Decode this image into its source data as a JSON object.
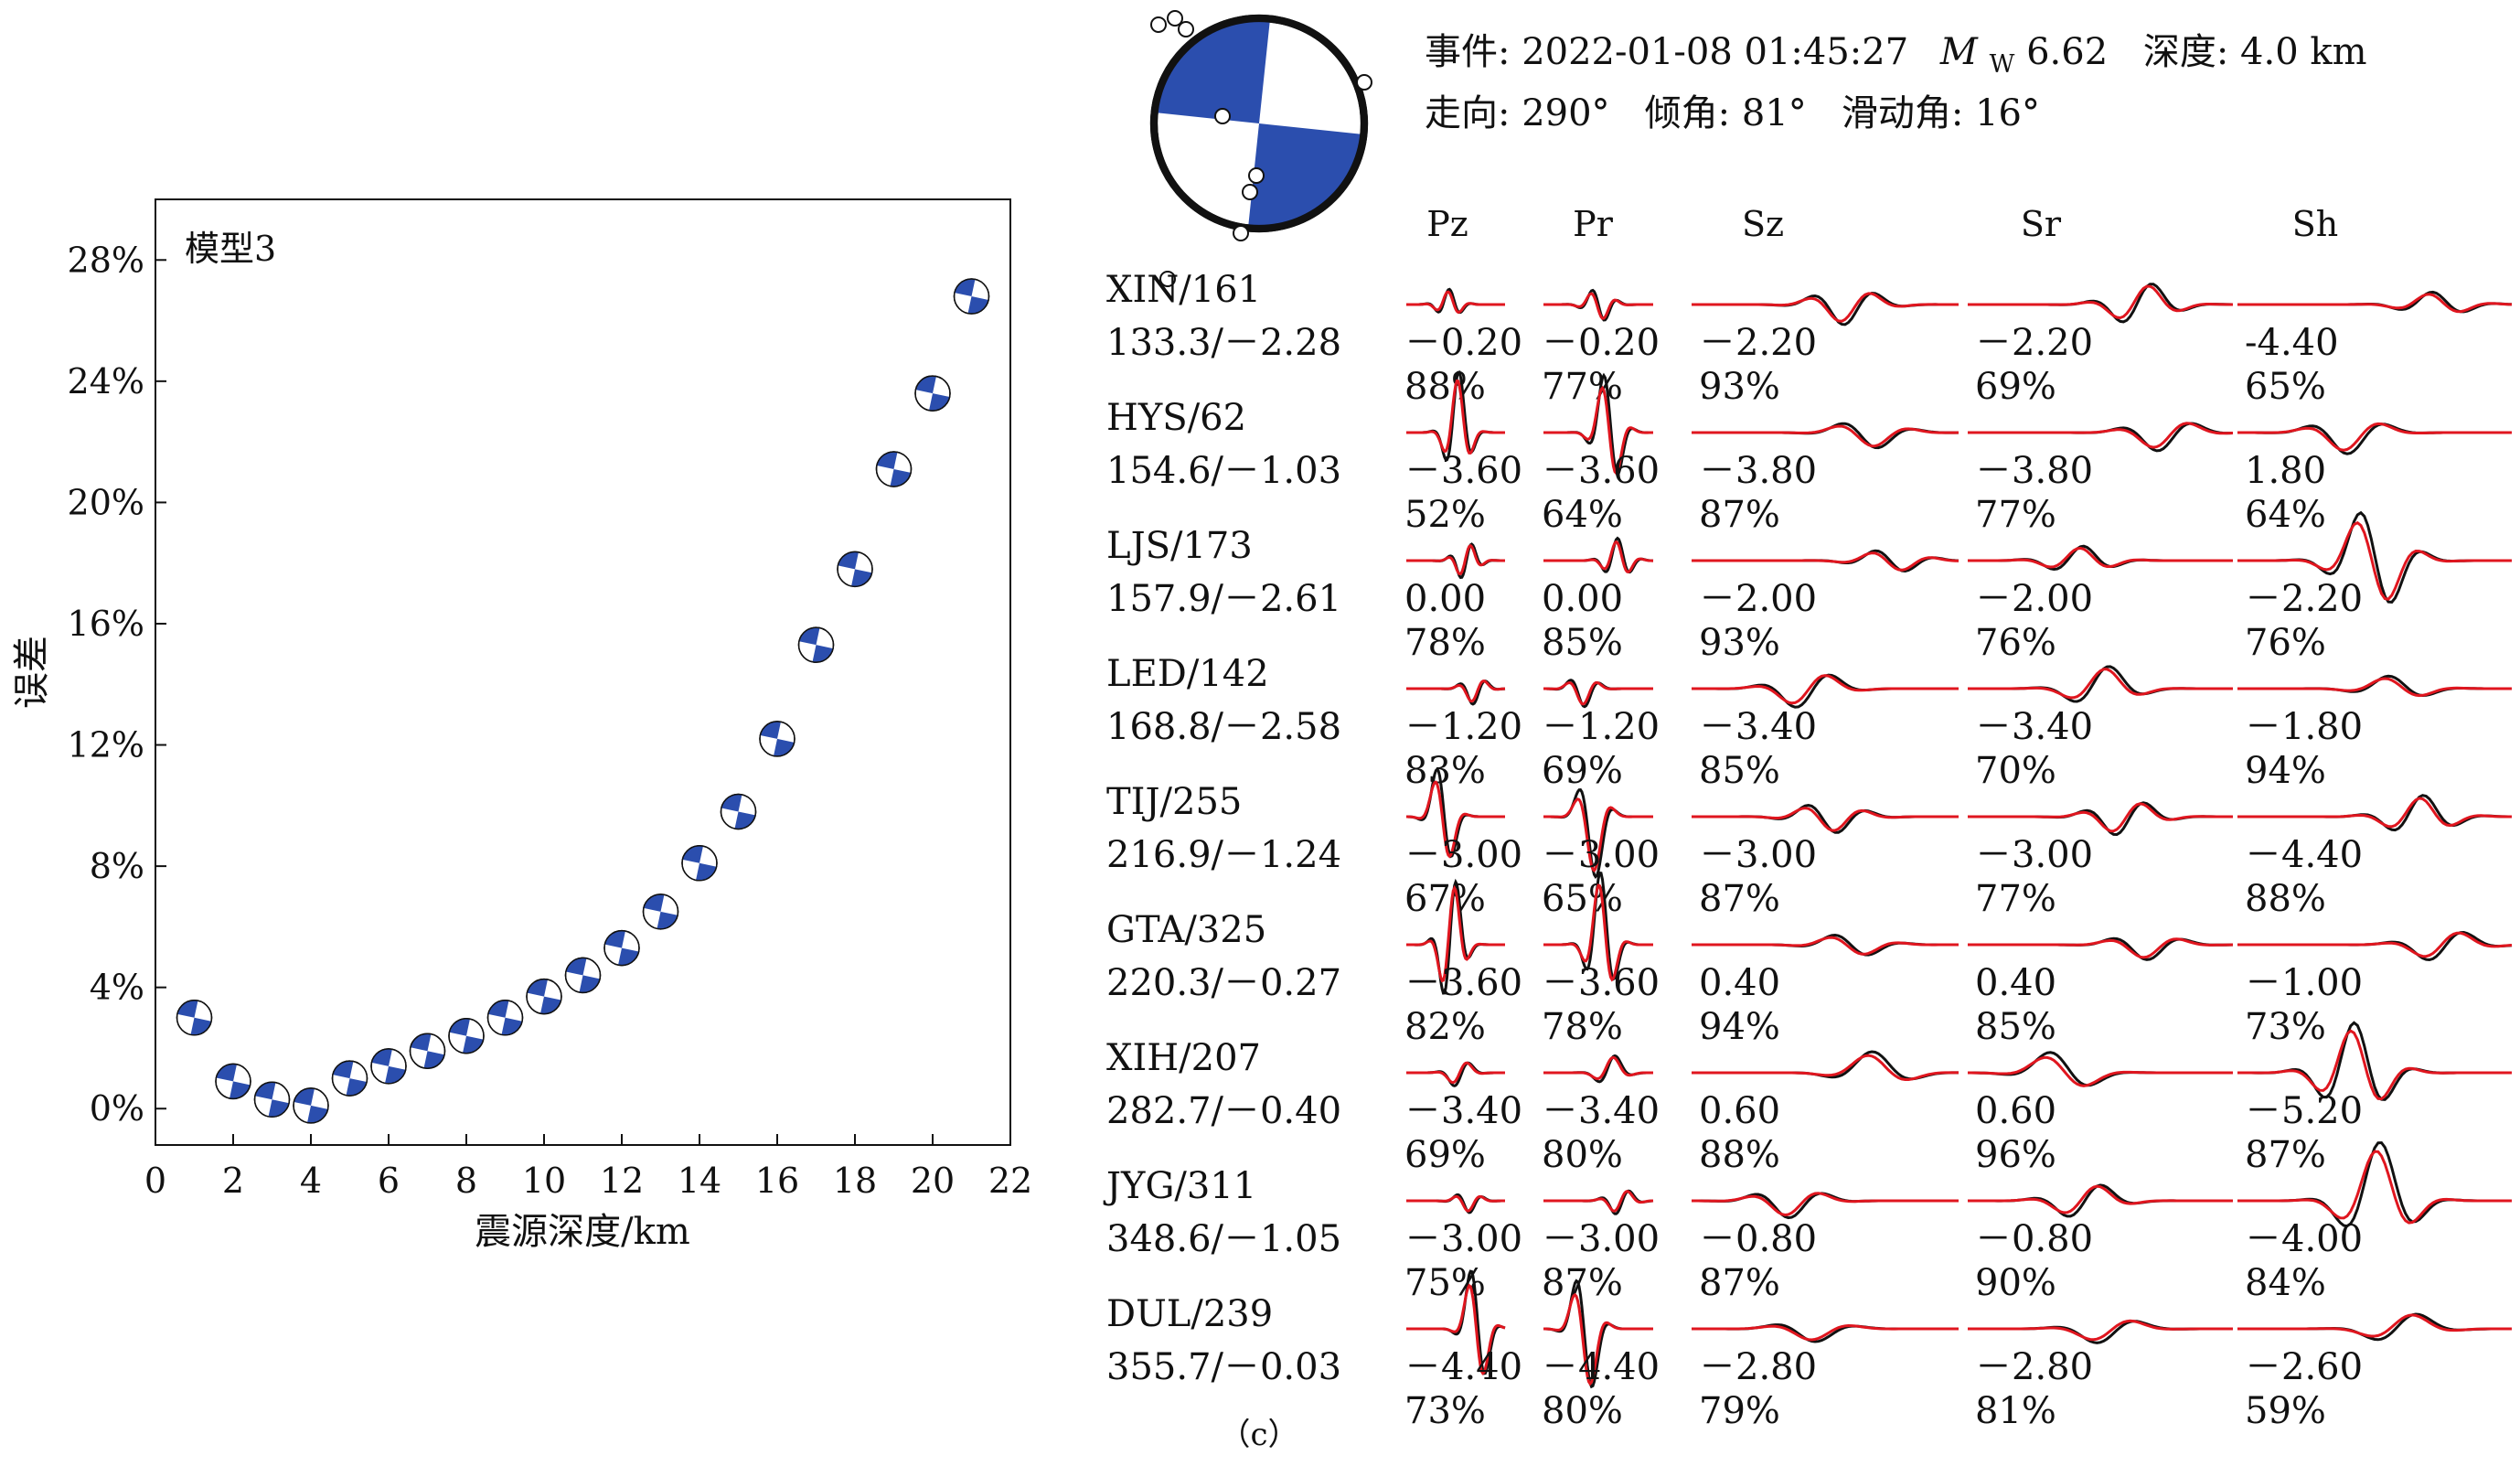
{
  "colors": {
    "beachball": "#2b4eae",
    "observed": "#111111",
    "synthetic": "#e0161f",
    "axis": "#111111"
  },
  "chart_data": [
    {
      "type": "scatter",
      "label": "模型3",
      "xlabel": "震源深度/km",
      "ylabel": "误差",
      "xlim": [
        0,
        22
      ],
      "ylim": [
        -1.2,
        30
      ],
      "xticks": [
        "0",
        "2",
        "4",
        "6",
        "8",
        "10",
        "12",
        "14",
        "16",
        "18",
        "20",
        "22"
      ],
      "xtick_values": [
        0,
        2,
        4,
        6,
        8,
        10,
        12,
        14,
        16,
        18,
        20,
        22
      ],
      "yticks": [
        "0%",
        "4%",
        "8%",
        "12%",
        "16%",
        "20%",
        "24%",
        "28%"
      ],
      "ytick_values": [
        0,
        4,
        8,
        12,
        16,
        20,
        24,
        28
      ],
      "marker": "beachball",
      "x": [
        1,
        2,
        3,
        4,
        5,
        6,
        7,
        8,
        9,
        10,
        11,
        12,
        13,
        14,
        15,
        16,
        17,
        18,
        19,
        20,
        21
      ],
      "y": [
        3.0,
        0.9,
        0.3,
        0.1,
        1.0,
        1.4,
        1.9,
        2.4,
        3.0,
        3.7,
        4.4,
        5.3,
        6.5,
        8.1,
        9.8,
        12.2,
        15.3,
        17.8,
        21.1,
        23.6,
        26.8
      ]
    },
    {
      "type": "line",
      "event": {
        "line1_prefix": "事件: 2022-01-08 01:45:27",
        "mag_M": "M",
        "mag_sub": "W",
        "mag_value": "6.62",
        "depth": "深度: 4.0 km",
        "line2": "走向: 290°   倾角: 81°   滑动角: 16°"
      },
      "columns": [
        "Pz",
        "Pr",
        "Sz",
        "Sr",
        "Sh"
      ],
      "panel_label": "（c）",
      "legend": [
        {
          "series": "observed",
          "color": "#111111"
        },
        {
          "series": "synthetic",
          "color": "#e0161f"
        }
      ],
      "stations": [
        {
          "name": "XIN/161",
          "info": "133.3/－2.28",
          "shifts": [
            "－0.20",
            "－0.20",
            "－2.20",
            "－2.20",
            "-4.40"
          ],
          "fits": [
            "88%",
            "77%",
            "93%",
            "69%",
            "65%"
          ]
        },
        {
          "name": "HYS/62",
          "info": "154.6/－1.03",
          "shifts": [
            "－3.60",
            "－3.60",
            "－3.80",
            "－3.80",
            "1.80"
          ],
          "fits": [
            "52%",
            "64%",
            "87%",
            "77%",
            "64%"
          ]
        },
        {
          "name": "LJS/173",
          "info": "157.9/－2.61",
          "shifts": [
            "0.00",
            "0.00",
            "－2.00",
            "－2.00",
            "－2.20"
          ],
          "fits": [
            "78%",
            "85%",
            "93%",
            "76%",
            "76%"
          ]
        },
        {
          "name": "LED/142",
          "info": "168.8/－2.58",
          "shifts": [
            "－1.20",
            "－1.20",
            "－3.40",
            "－3.40",
            "－1.80"
          ],
          "fits": [
            "83%",
            "69%",
            "85%",
            "70%",
            "94%"
          ]
        },
        {
          "name": "TIJ/255",
          "info": "216.9/－1.24",
          "shifts": [
            "－3.00",
            "－3.00",
            "－3.00",
            "－3.00",
            "－4.40"
          ],
          "fits": [
            "67%",
            "65%",
            "87%",
            "77%",
            "88%"
          ]
        },
        {
          "name": "GTA/325",
          "info": "220.3/－0.27",
          "shifts": [
            "－3.60",
            "－3.60",
            "0.40",
            "0.40",
            "－1.00"
          ],
          "fits": [
            "82%",
            "78%",
            "94%",
            "85%",
            "73%"
          ]
        },
        {
          "name": "XIH/207",
          "info": "282.7/－0.40",
          "shifts": [
            "－3.40",
            "－3.40",
            "0.60",
            "0.60",
            "－5.20"
          ],
          "fits": [
            "69%",
            "80%",
            "88%",
            "96%",
            "87%"
          ]
        },
        {
          "name": "JYG/311",
          "info": "348.6/－1.05",
          "shifts": [
            "－3.00",
            "－3.00",
            "－0.80",
            "－0.80",
            "－4.00"
          ],
          "fits": [
            "75%",
            "87%",
            "87%",
            "90%",
            "84%"
          ]
        },
        {
          "name": "DUL/239",
          "info": "355.7/－0.03",
          "shifts": [
            "－4.40",
            "－4.40",
            "－2.80",
            "－2.80",
            "－2.60"
          ],
          "fits": [
            "73%",
            "80%",
            "79%",
            "81%",
            "59%"
          ]
        }
      ]
    }
  ]
}
